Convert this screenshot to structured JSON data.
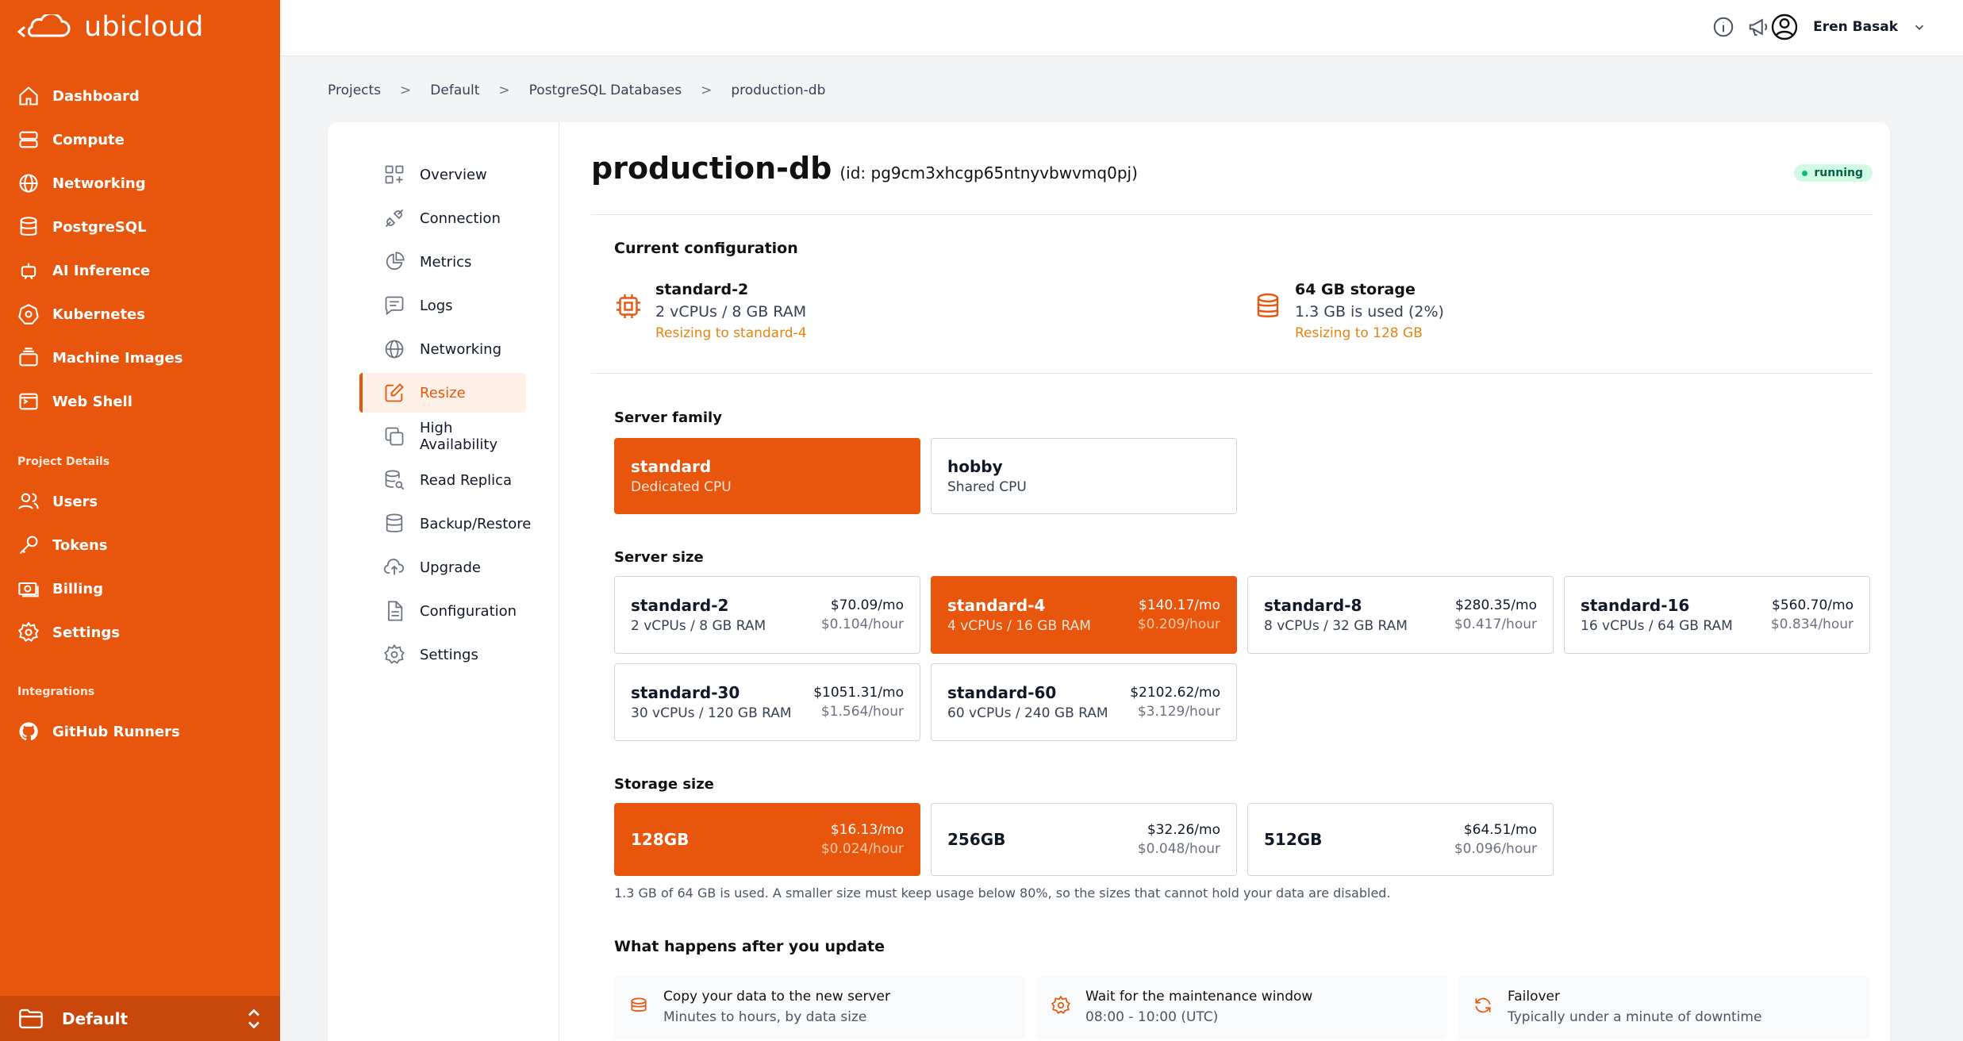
{
  "brand": {
    "name": "ubicloud"
  },
  "sidebar": {
    "items": [
      {
        "label": "Dashboard",
        "icon": "home-icon"
      },
      {
        "label": "Compute",
        "icon": "server-icon"
      },
      {
        "label": "Networking",
        "icon": "globe-icon"
      },
      {
        "label": "PostgreSQL",
        "icon": "database-icon"
      },
      {
        "label": "AI Inference",
        "icon": "robot-icon"
      },
      {
        "label": "Kubernetes",
        "icon": "kubernetes-icon"
      },
      {
        "label": "Machine Images",
        "icon": "image-stack-icon"
      },
      {
        "label": "Web Shell",
        "icon": "terminal-icon"
      }
    ],
    "project_details_heading": "Project Details",
    "project_items": [
      {
        "label": "Users",
        "icon": "users-icon"
      },
      {
        "label": "Tokens",
        "icon": "key-icon"
      },
      {
        "label": "Billing",
        "icon": "billing-icon"
      },
      {
        "label": "Settings",
        "icon": "gear-icon"
      }
    ],
    "integrations_heading": "Integrations",
    "integration_items": [
      {
        "label": "GitHub Runners",
        "icon": "github-icon"
      }
    ],
    "project_selector": "Default"
  },
  "topbar": {
    "user_name": "Eren Basak"
  },
  "breadcrumb": [
    "Projects",
    "Default",
    "PostgreSQL Databases",
    "production-db"
  ],
  "db_nav": {
    "items": [
      "Overview",
      "Connection",
      "Metrics",
      "Logs",
      "Networking",
      "Resize",
      "High Availability",
      "Read Replica",
      "Backup/Restore",
      "Upgrade",
      "Configuration",
      "Settings"
    ],
    "active": "Resize"
  },
  "database": {
    "name": "production-db",
    "id_text": "(id: pg9cm3xhcgp65ntnyvbwvmq0pj)",
    "status": "running"
  },
  "current_config": {
    "heading": "Current configuration",
    "server": {
      "name": "standard-2",
      "spec": "2 vCPUs / 8 GB RAM",
      "resize_note": "Resizing to standard-4"
    },
    "storage": {
      "name": "64 GB storage",
      "usage": "1.3 GB is used (2%)",
      "resize_note": "Resizing to 128 GB"
    }
  },
  "server_family": {
    "label": "Server family",
    "options": [
      {
        "name": "standard",
        "desc": "Dedicated CPU",
        "selected": true
      },
      {
        "name": "hobby",
        "desc": "Shared CPU",
        "selected": false
      }
    ]
  },
  "server_size": {
    "label": "Server size",
    "options": [
      {
        "name": "standard-2",
        "spec": "2 vCPUs / 8 GB RAM",
        "monthly": "$70.09/mo",
        "hourly": "$0.104/hour",
        "selected": false
      },
      {
        "name": "standard-4",
        "spec": "4 vCPUs / 16 GB RAM",
        "monthly": "$140.17/mo",
        "hourly": "$0.209/hour",
        "selected": true
      },
      {
        "name": "standard-8",
        "spec": "8 vCPUs / 32 GB RAM",
        "monthly": "$280.35/mo",
        "hourly": "$0.417/hour",
        "selected": false
      },
      {
        "name": "standard-16",
        "spec": "16 vCPUs / 64 GB RAM",
        "monthly": "$560.70/mo",
        "hourly": "$0.834/hour",
        "selected": false
      },
      {
        "name": "standard-30",
        "spec": "30 vCPUs / 120 GB RAM",
        "monthly": "$1051.31/mo",
        "hourly": "$1.564/hour",
        "selected": false
      },
      {
        "name": "standard-60",
        "spec": "60 vCPUs / 240 GB RAM",
        "monthly": "$2102.62/mo",
        "hourly": "$3.129/hour",
        "selected": false
      }
    ]
  },
  "storage_size": {
    "label": "Storage size",
    "options": [
      {
        "name": "128GB",
        "monthly": "$16.13/mo",
        "hourly": "$0.024/hour",
        "selected": true
      },
      {
        "name": "256GB",
        "monthly": "$32.26/mo",
        "hourly": "$0.048/hour",
        "selected": false
      },
      {
        "name": "512GB",
        "monthly": "$64.51/mo",
        "hourly": "$0.096/hour",
        "selected": false
      }
    ],
    "note": "1.3 GB of 64 GB is used. A smaller size must keep usage below 80%, so the sizes that cannot hold your data are disabled."
  },
  "after_update": {
    "heading": "What happens after you update",
    "steps": [
      {
        "title": "Copy your data to the new server",
        "desc": "Minutes to hours, by data size",
        "icon": "database-copy-icon"
      },
      {
        "title": "Wait for the maintenance window",
        "desc": "08:00 - 10:00 (UTC)",
        "icon": "gear-icon"
      },
      {
        "title": "Failover",
        "desc": "Typically under a minute of downtime",
        "icon": "refresh-icon"
      }
    ]
  },
  "colors": {
    "accent": "#e8560d",
    "accent_dark": "#c9470a",
    "note_orange": "#e8830d",
    "status_green": "#10b981"
  }
}
